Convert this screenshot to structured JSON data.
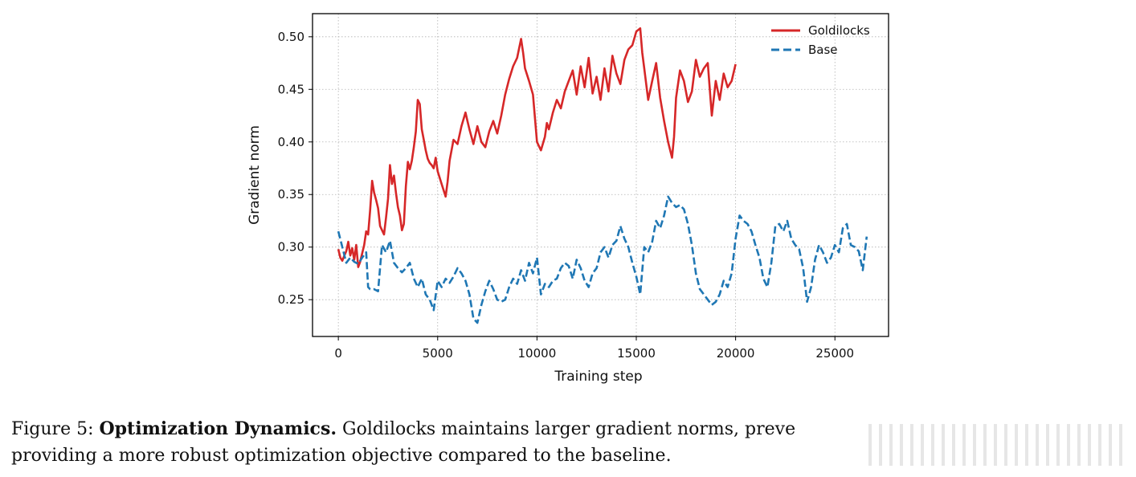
{
  "chart_data": {
    "type": "line",
    "title": "",
    "xlabel": "Training step",
    "ylabel": "Gradient norm",
    "xlim": [
      -1300,
      27700
    ],
    "ylim": [
      0.215,
      0.522
    ],
    "xticks": [
      0,
      5000,
      10000,
      15000,
      20000,
      25000
    ],
    "yticks": [
      0.25,
      0.3,
      0.35,
      0.4,
      0.45,
      0.5
    ],
    "xtick_labels": [
      "0",
      "5000",
      "10000",
      "15000",
      "20000",
      "25000"
    ],
    "ytick_labels": [
      "0.25",
      "0.30",
      "0.35",
      "0.40",
      "0.45",
      "0.50"
    ],
    "grid": true,
    "legend_position": "top-right",
    "series": [
      {
        "name": "Goldilocks",
        "color": "#d62728",
        "style": "solid",
        "x": [
          0,
          100,
          200,
          300,
          400,
          500,
          600,
          700,
          800,
          900,
          1000,
          1100,
          1200,
          1300,
          1400,
          1500,
          1600,
          1700,
          1800,
          1900,
          2000,
          2100,
          2200,
          2300,
          2400,
          2500,
          2600,
          2700,
          2800,
          2900,
          3000,
          3100,
          3200,
          3300,
          3400,
          3500,
          3600,
          3700,
          3800,
          3900,
          4000,
          4100,
          4200,
          4300,
          4400,
          4500,
          4600,
          4700,
          4800,
          4900,
          5000,
          5200,
          5400,
          5500,
          5600,
          5800,
          6000,
          6200,
          6400,
          6500,
          6600,
          6800,
          7000,
          7200,
          7400,
          7600,
          7800,
          8000,
          8200,
          8400,
          8600,
          8800,
          9000,
          9200,
          9300,
          9400,
          9600,
          9800,
          10000,
          10200,
          10400,
          10500,
          10600,
          10800,
          11000,
          11200,
          11400,
          11600,
          11800,
          12000,
          12200,
          12400,
          12600,
          12800,
          13000,
          13200,
          13400,
          13600,
          13800,
          14000,
          14200,
          14400,
          14600,
          14800,
          15000,
          15200,
          15300,
          15400,
          15600,
          15800,
          16000,
          16200,
          16400,
          16600,
          16800,
          16900,
          17000,
          17200,
          17400,
          17600,
          17800,
          18000,
          18200,
          18400,
          18600,
          18800,
          19000,
          19200,
          19400,
          19600,
          19800,
          20000
        ],
        "values": [
          0.298,
          0.29,
          0.287,
          0.292,
          0.296,
          0.305,
          0.292,
          0.299,
          0.288,
          0.302,
          0.281,
          0.286,
          0.294,
          0.302,
          0.315,
          0.312,
          0.335,
          0.363,
          0.352,
          0.345,
          0.337,
          0.32,
          0.316,
          0.312,
          0.328,
          0.346,
          0.378,
          0.36,
          0.368,
          0.352,
          0.338,
          0.33,
          0.316,
          0.322,
          0.358,
          0.381,
          0.374,
          0.382,
          0.395,
          0.41,
          0.44,
          0.436,
          0.412,
          0.402,
          0.392,
          0.384,
          0.38,
          0.378,
          0.375,
          0.385,
          0.372,
          0.36,
          0.348,
          0.362,
          0.382,
          0.402,
          0.398,
          0.415,
          0.428,
          0.42,
          0.412,
          0.398,
          0.415,
          0.4,
          0.395,
          0.41,
          0.42,
          0.408,
          0.425,
          0.445,
          0.46,
          0.472,
          0.48,
          0.498,
          0.485,
          0.47,
          0.458,
          0.445,
          0.4,
          0.392,
          0.405,
          0.418,
          0.412,
          0.428,
          0.44,
          0.432,
          0.448,
          0.458,
          0.468,
          0.445,
          0.472,
          0.452,
          0.48,
          0.446,
          0.462,
          0.44,
          0.47,
          0.448,
          0.482,
          0.465,
          0.455,
          0.478,
          0.488,
          0.492,
          0.505,
          0.508,
          0.485,
          0.47,
          0.44,
          0.458,
          0.475,
          0.442,
          0.42,
          0.4,
          0.385,
          0.405,
          0.442,
          0.468,
          0.458,
          0.438,
          0.448,
          0.478,
          0.462,
          0.47,
          0.475,
          0.425,
          0.458,
          0.44,
          0.465,
          0.452,
          0.458,
          0.474
        ],
        "end_x": 20000
      },
      {
        "name": "Base",
        "color": "#1f77b4",
        "style": "dashed",
        "x": [
          0,
          200,
          400,
          600,
          800,
          1000,
          1200,
          1400,
          1500,
          1600,
          1800,
          2000,
          2200,
          2400,
          2600,
          2800,
          3000,
          3200,
          3400,
          3600,
          3800,
          4000,
          4200,
          4400,
          4600,
          4800,
          5000,
          5200,
          5400,
          5600,
          5800,
          6000,
          6200,
          6400,
          6600,
          6800,
          7000,
          7200,
          7400,
          7600,
          7800,
          8000,
          8200,
          8400,
          8600,
          8800,
          9000,
          9200,
          9400,
          9600,
          9800,
          10000,
          10200,
          10400,
          10600,
          10800,
          11000,
          11200,
          11400,
          11600,
          11800,
          12000,
          12200,
          12400,
          12600,
          12800,
          13000,
          13200,
          13400,
          13600,
          13800,
          14000,
          14200,
          14400,
          14600,
          14800,
          15000,
          15200,
          15400,
          15600,
          15800,
          16000,
          16200,
          16400,
          16600,
          16800,
          17000,
          17200,
          17400,
          17600,
          17800,
          18000,
          18200,
          18400,
          18600,
          18800,
          19000,
          19200,
          19400,
          19600,
          19800,
          20000,
          20200,
          20400,
          20600,
          20800,
          21000,
          21200,
          21400,
          21600,
          21800,
          22000,
          22200,
          22400,
          22600,
          22800,
          23000,
          23200,
          23400,
          23600,
          23800,
          24000,
          24200,
          24400,
          24600,
          24800,
          25000,
          25200,
          25400,
          25600,
          25800,
          26000,
          26200,
          26400,
          26600
        ],
        "values": [
          0.315,
          0.3,
          0.285,
          0.29,
          0.286,
          0.284,
          0.29,
          0.295,
          0.262,
          0.26,
          0.26,
          0.258,
          0.302,
          0.295,
          0.306,
          0.285,
          0.28,
          0.276,
          0.28,
          0.285,
          0.27,
          0.262,
          0.27,
          0.255,
          0.25,
          0.24,
          0.268,
          0.262,
          0.27,
          0.266,
          0.272,
          0.28,
          0.275,
          0.268,
          0.255,
          0.232,
          0.228,
          0.245,
          0.258,
          0.268,
          0.26,
          0.25,
          0.248,
          0.25,
          0.262,
          0.27,
          0.265,
          0.278,
          0.268,
          0.285,
          0.275,
          0.29,
          0.255,
          0.265,
          0.262,
          0.268,
          0.27,
          0.28,
          0.285,
          0.282,
          0.27,
          0.288,
          0.28,
          0.268,
          0.262,
          0.275,
          0.28,
          0.295,
          0.3,
          0.29,
          0.302,
          0.306,
          0.32,
          0.308,
          0.3,
          0.285,
          0.272,
          0.255,
          0.3,
          0.295,
          0.305,
          0.325,
          0.318,
          0.33,
          0.348,
          0.342,
          0.338,
          0.34,
          0.336,
          0.322,
          0.302,
          0.275,
          0.26,
          0.255,
          0.25,
          0.245,
          0.248,
          0.255,
          0.268,
          0.262,
          0.275,
          0.308,
          0.33,
          0.325,
          0.322,
          0.315,
          0.302,
          0.29,
          0.27,
          0.262,
          0.285,
          0.32,
          0.322,
          0.315,
          0.325,
          0.308,
          0.302,
          0.298,
          0.28,
          0.248,
          0.262,
          0.288,
          0.302,
          0.295,
          0.285,
          0.29,
          0.302,
          0.295,
          0.318,
          0.322,
          0.302,
          0.3,
          0.296,
          0.278,
          0.31
        ],
        "end_x": 26600
      }
    ]
  },
  "caption": {
    "label": "Figure 5:",
    "bold": "Optimization Dynamics.",
    "text_line1": " Goldilocks maintains larger gradient norms, preve",
    "text_line2": "providing a more robust optimization objective compared to the baseline."
  }
}
